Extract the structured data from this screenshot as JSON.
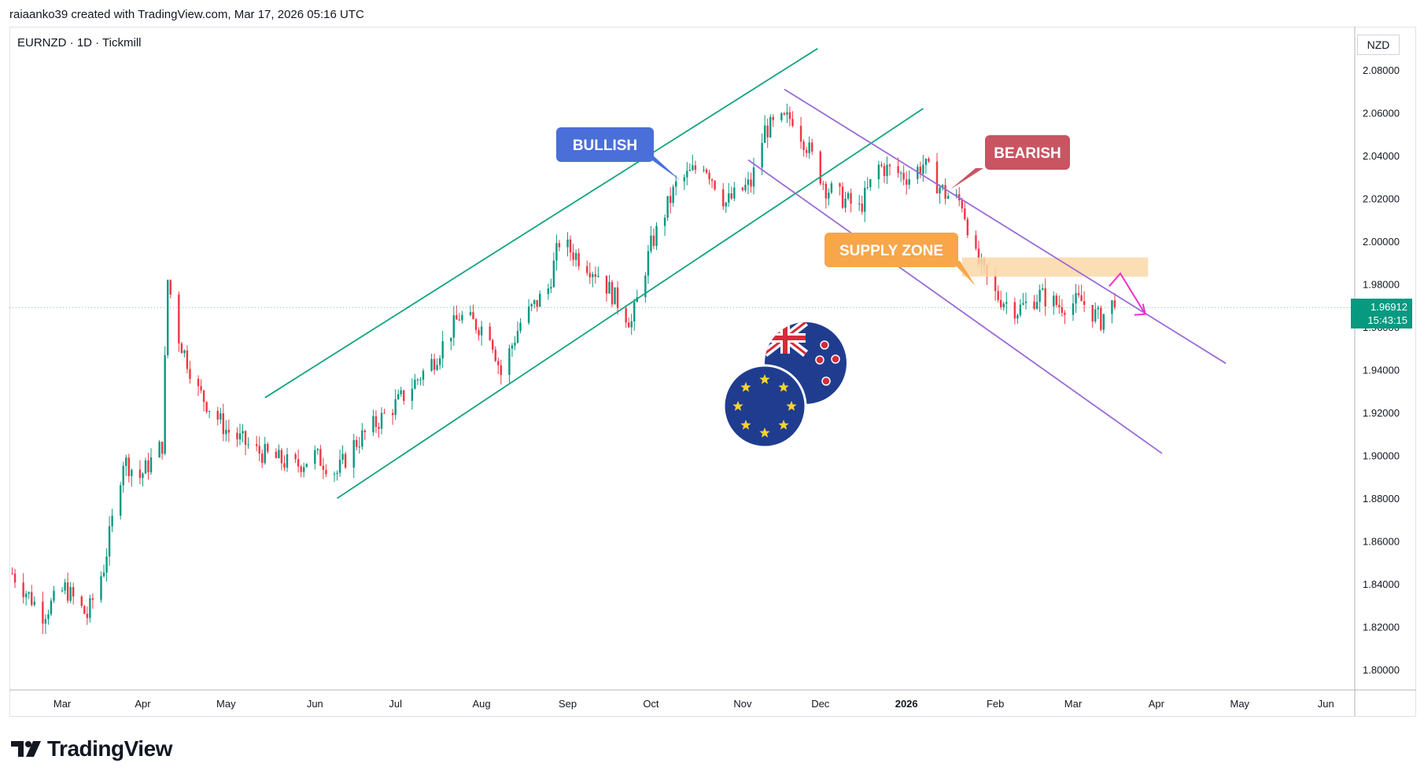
{
  "header": {
    "attribution": "raiaanko39 created with TradingView.com, Mar 17, 2026 05:16 UTC"
  },
  "symbol": {
    "label": "EURNZD · 1D · Tickmill"
  },
  "currency": {
    "label": "NZD"
  },
  "last_price": {
    "value": "1.96912",
    "countdown": "15:43:15"
  },
  "brand": {
    "name": "TradingView"
  },
  "annotations": {
    "bullish": "BULLISH",
    "bearish": "BEARISH",
    "supply_zone": "SUPPLY ZONE"
  },
  "colors": {
    "up": "#089981",
    "down": "#f23645",
    "trend_channel": "#13a37f",
    "down_channel": "#9c6ad8",
    "bullish_bubble": "#4a6fd9",
    "bearish_bubble": "#c95462",
    "supply_bubble": "#f7a64a",
    "supply_zone_fill": "#fcd8a8",
    "arrow": "#f032c8"
  },
  "chart_data": {
    "type": "candlestick",
    "title": "",
    "y_axis": {
      "ticks": [
        "2.08000",
        "2.06000",
        "2.04000",
        "2.02000",
        "2.00000",
        "1.98000",
        "1.96000",
        "1.94000",
        "1.92000",
        "1.90000",
        "1.88000",
        "1.86000",
        "1.84000",
        "1.82000",
        "1.80000"
      ],
      "ylim": [
        1.792,
        2.098
      ]
    },
    "x_axis": {
      "ticks": [
        "Mar",
        "Apr",
        "May",
        "Jun",
        "Jul",
        "Aug",
        "Sep",
        "Oct",
        "Nov",
        "Dec",
        "2026",
        "Feb",
        "Mar",
        "Apr",
        "May",
        "Jun"
      ]
    },
    "series": [
      {
        "knots": [
          [
            "2025-02-13",
            1.845
          ],
          [
            "2025-02-24",
            1.826
          ],
          [
            "2025-03-04",
            1.838
          ],
          [
            "2025-03-12",
            1.825
          ],
          [
            "2025-03-18",
            1.848
          ],
          [
            "2025-03-25",
            1.898
          ],
          [
            "2025-03-31",
            1.89
          ],
          [
            "2025-04-08",
            1.905
          ],
          [
            "2025-04-10",
            1.982
          ],
          [
            "2025-04-14",
            1.955
          ],
          [
            "2025-04-21",
            1.93
          ],
          [
            "2025-05-01",
            1.912
          ],
          [
            "2025-05-12",
            1.902
          ],
          [
            "2025-05-26",
            1.895
          ],
          [
            "2025-06-02",
            1.9
          ],
          [
            "2025-06-10",
            1.892
          ],
          [
            "2025-06-16",
            1.905
          ],
          [
            "2025-07-02",
            1.925
          ],
          [
            "2025-07-15",
            1.945
          ],
          [
            "2025-07-24",
            1.965
          ],
          [
            "2025-08-04",
            1.958
          ],
          [
            "2025-08-08",
            1.938
          ],
          [
            "2025-08-15",
            1.962
          ],
          [
            "2025-08-25",
            1.978
          ],
          [
            "2025-08-29",
            2.0
          ],
          [
            "2025-09-12",
            1.985
          ],
          [
            "2025-09-24",
            1.962
          ],
          [
            "2025-10-01",
            1.998
          ],
          [
            "2025-10-10",
            2.026
          ],
          [
            "2025-10-20",
            2.037
          ],
          [
            "2025-10-28",
            2.018
          ],
          [
            "2025-11-06",
            2.027
          ],
          [
            "2025-11-11",
            2.052
          ],
          [
            "2025-11-21",
            2.058
          ],
          [
            "2025-11-26",
            2.045
          ],
          [
            "2025-12-03",
            2.025
          ],
          [
            "2025-12-15",
            2.015
          ],
          [
            "2025-12-22",
            2.035
          ],
          [
            "2026-01-02",
            2.03
          ],
          [
            "2026-01-07",
            2.036
          ],
          [
            "2026-01-15",
            2.022
          ],
          [
            "2026-01-21",
            2.018
          ],
          [
            "2026-01-26",
            1.992
          ],
          [
            "2026-02-02",
            1.975
          ],
          [
            "2026-02-10",
            1.968
          ],
          [
            "2026-02-18",
            1.975
          ],
          [
            "2026-02-25",
            1.97
          ],
          [
            "2026-03-05",
            1.972
          ],
          [
            "2026-03-12",
            1.963
          ],
          [
            "2026-03-15",
            1.972
          ],
          [
            "2026-03-17",
            1.969
          ]
        ],
        "last_close": 1.96912
      }
    ],
    "trendlines": [
      {
        "name": "",
        "from": [
          "2025-05-15",
          1.927
        ],
        "to": [
          "2025-11-30",
          2.09
        ]
      },
      {
        "name": "",
        "from": [
          "2025-06-10",
          1.88
        ],
        "to": [
          "2026-01-07",
          2.062
        ]
      },
      {
        "name": "",
        "from": [
          "2025-11-18",
          2.071
        ],
        "to": [
          "2026-04-26",
          1.943
        ]
      },
      {
        "name": "",
        "from": [
          "2025-11-05",
          2.038
        ],
        "to": [
          "2026-04-03",
          1.901
        ]
      }
    ],
    "zones": [
      {
        "label": "SUPPLY ZONE",
        "x_start": "2026-01-21",
        "x_end": "2026-03-29",
        "y_low": 1.9835,
        "y_high": 1.9925
      }
    ],
    "projection": {
      "from": [
        "2026-03-15",
        1.979
      ],
      "peak": [
        "2026-03-19",
        1.985
      ],
      "to": [
        "2026-03-28",
        1.966
      ]
    },
    "grid": false,
    "legend": "none"
  }
}
